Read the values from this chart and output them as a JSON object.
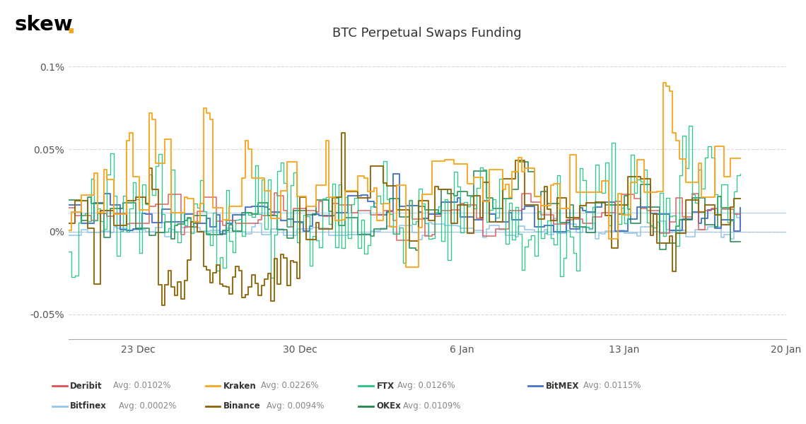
{
  "title": "BTC Perpetual Swaps Funding",
  "skew_dot_color": "#F5A623",
  "background_color": "#ffffff",
  "grid_color": "#cccccc",
  "series": {
    "Deribit": {
      "color": "#E05252",
      "lw": 1.1
    },
    "Kraken": {
      "color": "#F5A623",
      "lw": 1.5
    },
    "FTX": {
      "color": "#26C281",
      "lw": 1.0
    },
    "BitMEX": {
      "color": "#4472C4",
      "lw": 1.5
    },
    "Bitfinex": {
      "color": "#92C5E8",
      "lw": 1.2
    },
    "Binance": {
      "color": "#8B6508",
      "lw": 1.5
    },
    "OKEx": {
      "color": "#1E8449",
      "lw": 1.2
    }
  },
  "x_labels": [
    "23 Dec",
    "30 Dec",
    "6 Jan",
    "13 Jan",
    "20 Jan"
  ],
  "ytick_vals": [
    -0.0005,
    0.0,
    0.0005,
    0.001
  ],
  "ytick_labs": [
    "-0.05%",
    "0%",
    "0.05%",
    "0.1%"
  ],
  "ylim": [
    -0.00065,
    0.00112
  ],
  "zero_line_color": "#7EB0D5",
  "zero_line_y": 0.0,
  "avg_line_color": "#7EB0D5",
  "avg_line_y": 0.000115,
  "legend": [
    {
      "name": "Deribit",
      "avg": "Avg: 0.0102%",
      "color": "#E05252"
    },
    {
      "name": "Kraken",
      "avg": "Avg: 0.0226%",
      "color": "#F5A623"
    },
    {
      "name": "FTX",
      "avg": "Avg: 0.0126%",
      "color": "#26C281"
    },
    {
      "name": "BitMEX",
      "avg": "Avg: 0.0115%",
      "color": "#4472C4"
    },
    {
      "name": "Bitfinex",
      "avg": "Avg: 0.0002%",
      "color": "#92C5E8"
    },
    {
      "name": "Binance",
      "avg": "Avg: 0.0094%",
      "color": "#8B6508"
    },
    {
      "name": "OKEx",
      "avg": "Avg: 0.0109%",
      "color": "#1E8449"
    }
  ]
}
